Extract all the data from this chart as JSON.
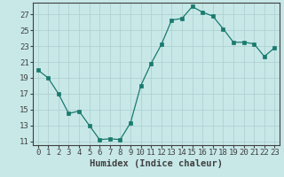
{
  "x": [
    0,
    1,
    2,
    3,
    4,
    5,
    6,
    7,
    8,
    9,
    10,
    11,
    12,
    13,
    14,
    15,
    16,
    17,
    18,
    19,
    20,
    21,
    22,
    23
  ],
  "y": [
    20,
    19,
    17,
    14.5,
    14.8,
    13,
    11.2,
    11.3,
    11.2,
    13.3,
    18,
    20.8,
    23.2,
    26.3,
    26.5,
    28,
    27.3,
    26.8,
    25.2,
    23.5,
    23.5,
    23.3,
    21.7,
    22.8
  ],
  "line_color": "#1a7a6e",
  "marker_color": "#1a7a6e",
  "bg_color": "#c8e8e8",
  "grid_color": "#aacece",
  "axis_color": "#404040",
  "xlabel": "Humidex (Indice chaleur)",
  "ylim": [
    10.5,
    28.5
  ],
  "yticks": [
    11,
    13,
    15,
    17,
    19,
    21,
    23,
    25,
    27
  ],
  "xticks": [
    0,
    1,
    2,
    3,
    4,
    5,
    6,
    7,
    8,
    9,
    10,
    11,
    12,
    13,
    14,
    15,
    16,
    17,
    18,
    19,
    20,
    21,
    22,
    23
  ],
  "font_size": 6.5,
  "xlabel_fontsize": 7.5
}
